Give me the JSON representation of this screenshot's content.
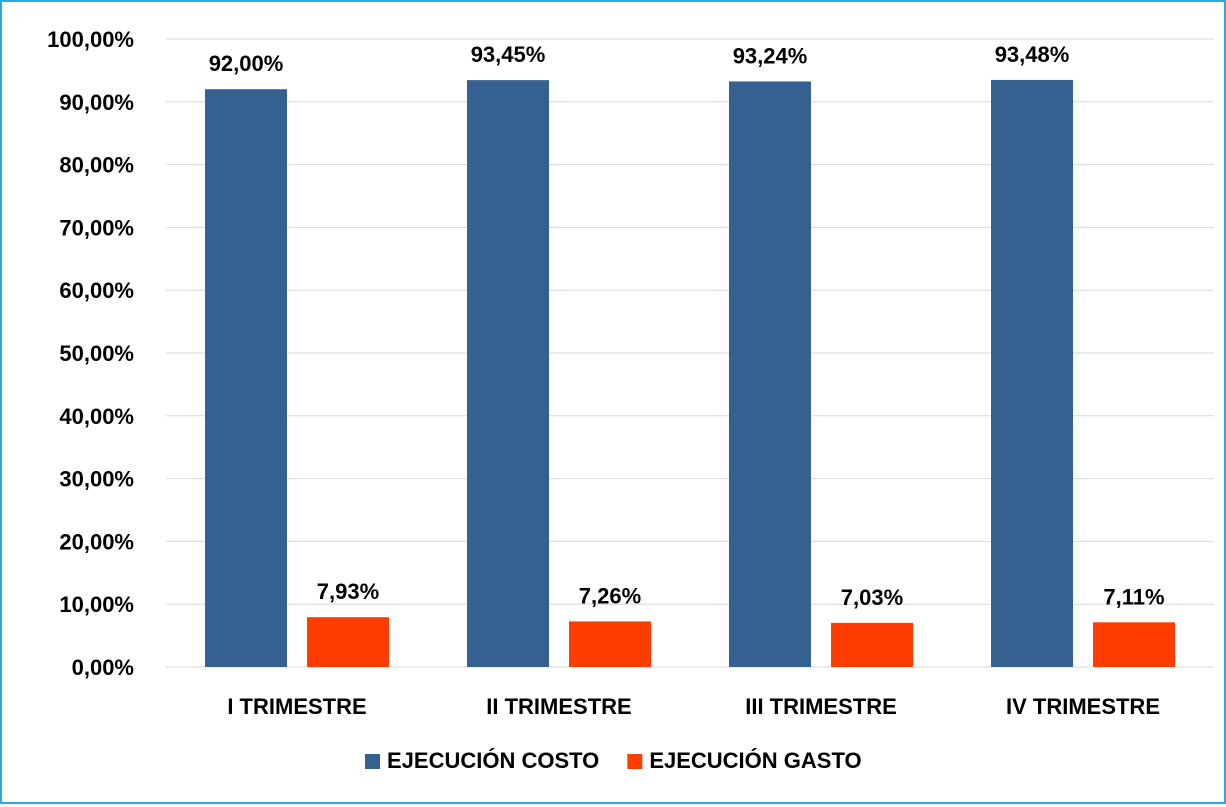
{
  "chart_data": {
    "type": "bar",
    "title": "",
    "xlabel": "",
    "ylabel": "",
    "categories": [
      "I TRIMESTRE",
      "II TRIMESTRE",
      "III TRIMESTRE",
      "IV TRIMESTRE"
    ],
    "series": [
      {
        "name": "EJECUCIÓN COSTO",
        "color": "#36608f",
        "values": [
          92.0,
          93.45,
          93.24,
          93.48
        ],
        "labels": [
          "92,00%",
          "93,45%",
          "93,24%",
          "93,48%"
        ]
      },
      {
        "name": "EJECUCIÓN GASTO",
        "color": "#ff3d00",
        "values": [
          7.93,
          7.26,
          7.03,
          7.11
        ],
        "labels": [
          "7,93%",
          "7,26%",
          "7,03%",
          "7,11%"
        ]
      }
    ],
    "ylim": [
      0,
      100
    ],
    "yticks": [
      0,
      10,
      20,
      30,
      40,
      50,
      60,
      70,
      80,
      90,
      100
    ],
    "ytick_labels": [
      "0,00%",
      "10,00%",
      "20,00%",
      "30,00%",
      "40,00%",
      "50,00%",
      "60,00%",
      "70,00%",
      "80,00%",
      "90,00%",
      "100,00%"
    ],
    "grid": true,
    "legend_position": "bottom",
    "frame_color": "#29abe2",
    "gridline_color": "#d9d9d9"
  }
}
